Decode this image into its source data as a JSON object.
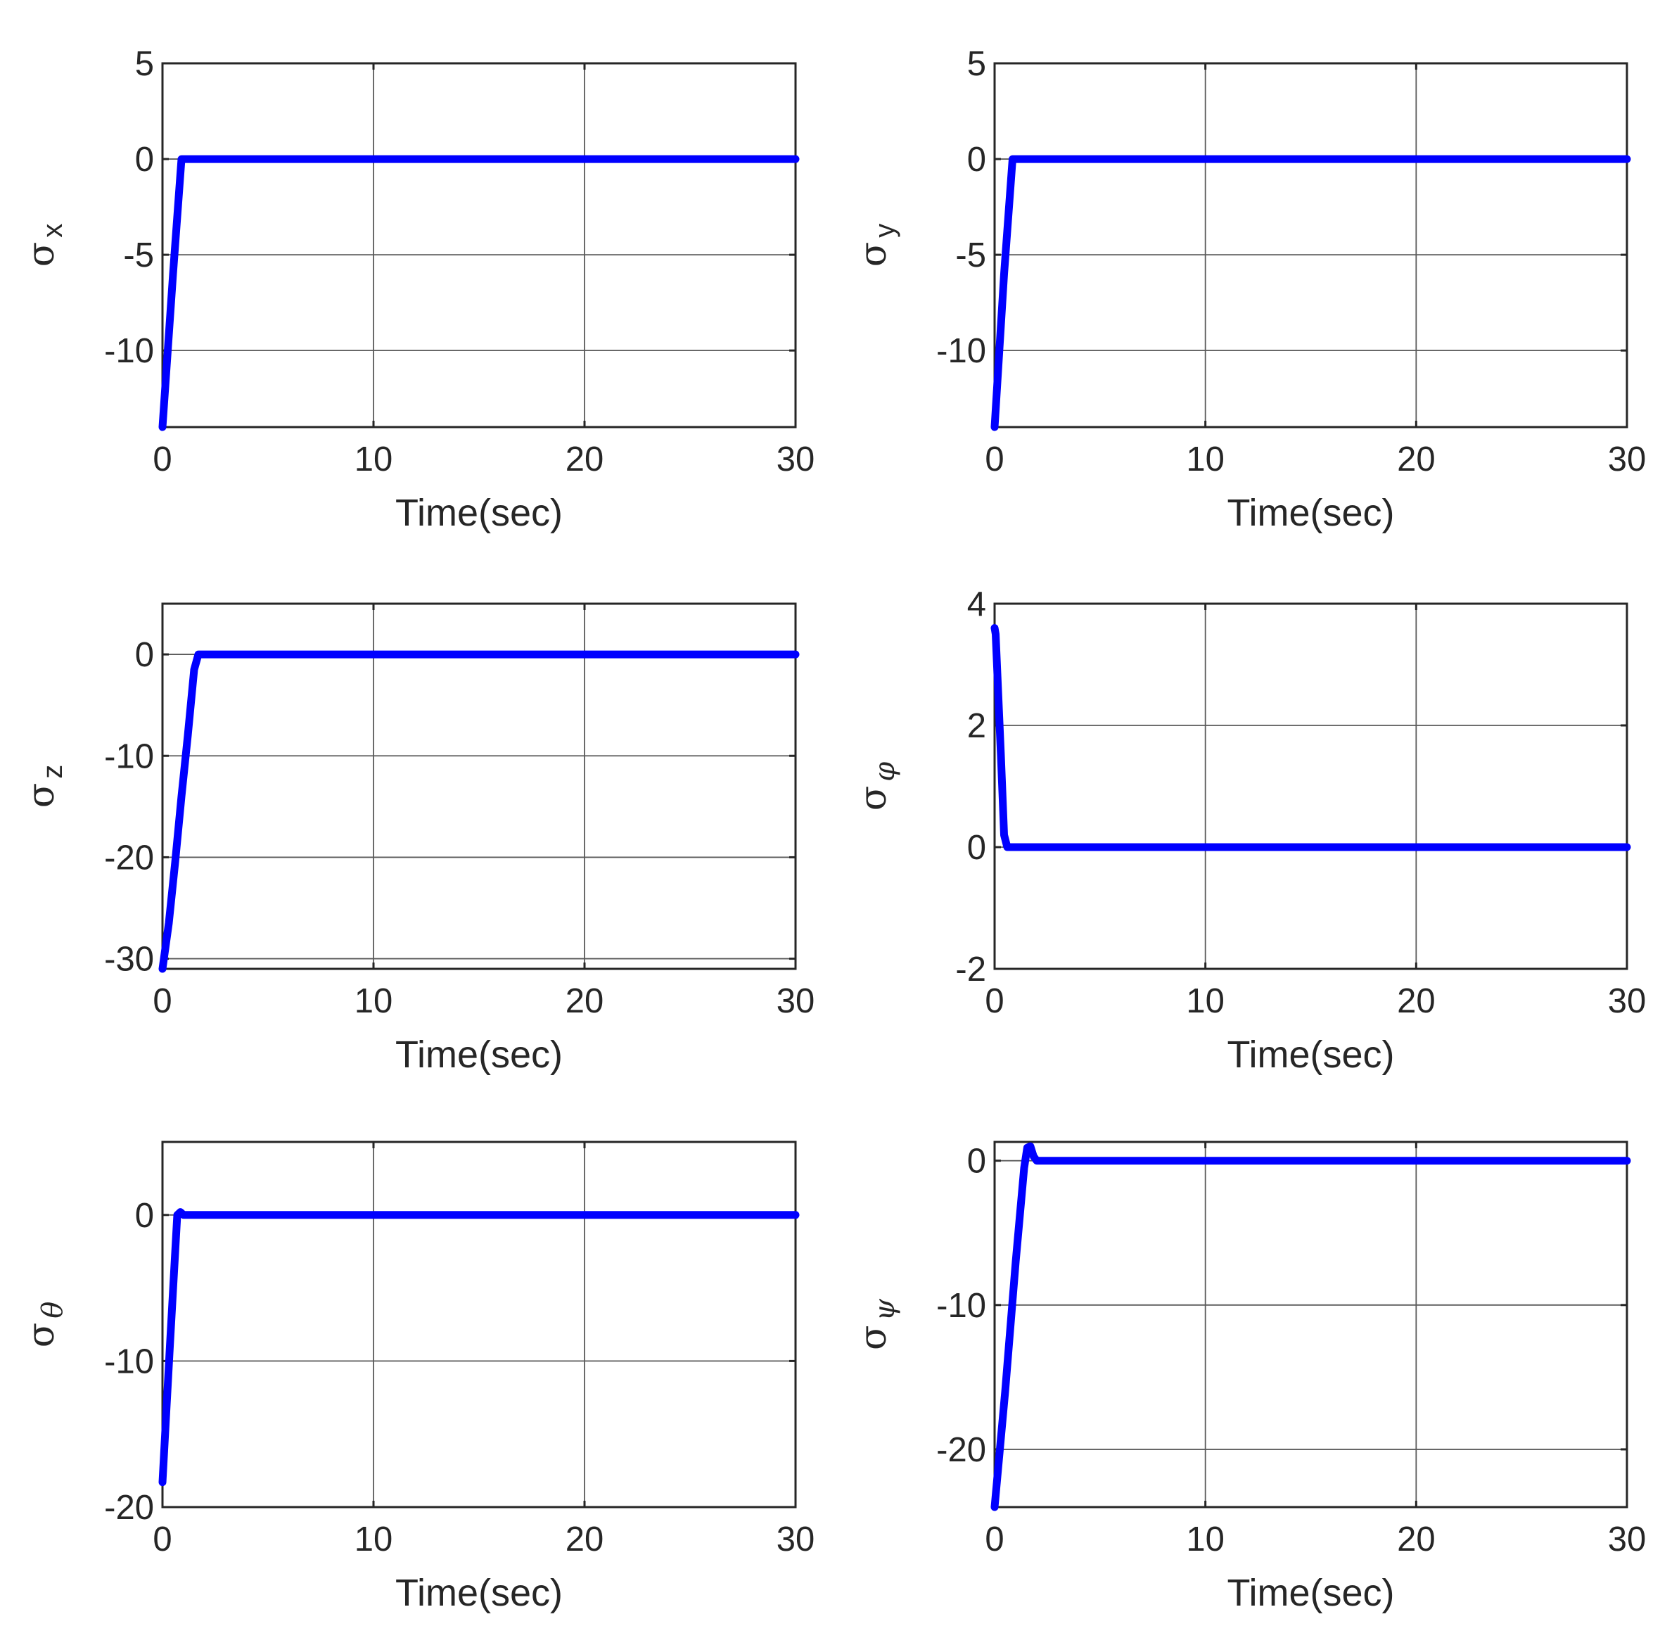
{
  "figure": {
    "panels_count": 6
  },
  "colors": {
    "series": "#0000ff",
    "axes": "#262626",
    "grid": "#5a5a5a"
  },
  "chart_data": [
    {
      "type": "line",
      "ylabel_symbol": "σ",
      "ylabel_sub": "x",
      "ylabel_sub_greek": false,
      "xlabel": "Time(sec)",
      "xlim": [
        0,
        30
      ],
      "ylim": [
        -14,
        5
      ],
      "xticks": [
        0,
        10,
        20,
        30
      ],
      "xtick_labels": [
        "0",
        "10",
        "20",
        "30"
      ],
      "yticks": [
        -10,
        -5,
        0,
        5
      ],
      "ytick_labels": [
        "-10",
        "-5",
        "0",
        "5"
      ],
      "grid": "on",
      "series": [
        {
          "x": [
            0,
            0.5,
            0.9,
            1.1,
            30
          ],
          "y": [
            -14,
            -6,
            0,
            0,
            0
          ]
        }
      ]
    },
    {
      "type": "line",
      "ylabel_symbol": "σ",
      "ylabel_sub": "y",
      "ylabel_sub_greek": false,
      "xlabel": "Time(sec)",
      "xlim": [
        0,
        30
      ],
      "ylim": [
        -14,
        5
      ],
      "xticks": [
        0,
        10,
        20,
        30
      ],
      "xtick_labels": [
        "0",
        "10",
        "20",
        "30"
      ],
      "yticks": [
        -10,
        -5,
        0,
        5
      ],
      "ytick_labels": [
        "-10",
        "-5",
        "0",
        "5"
      ],
      "grid": "on",
      "series": [
        {
          "x": [
            0,
            0.45,
            0.85,
            1.0,
            30
          ],
          "y": [
            -14,
            -6,
            0,
            0,
            0
          ]
        }
      ]
    },
    {
      "type": "line",
      "ylabel_symbol": "σ",
      "ylabel_sub": "z",
      "ylabel_sub_greek": false,
      "xlabel": "Time(sec)",
      "xlim": [
        0,
        30
      ],
      "ylim": [
        -31,
        5
      ],
      "xticks": [
        0,
        10,
        20,
        30
      ],
      "xtick_labels": [
        "0",
        "10",
        "20",
        "30"
      ],
      "yticks": [
        -30,
        -20,
        -10,
        0
      ],
      "ytick_labels": [
        "-30",
        "-20",
        "-10",
        "0"
      ],
      "grid": "on",
      "series": [
        {
          "x": [
            0,
            0.3,
            0.6,
            0.9,
            1.2,
            1.5,
            1.7,
            30
          ],
          "y": [
            -31,
            -26.5,
            -20.5,
            -14,
            -8,
            -1.5,
            0,
            0
          ]
        }
      ]
    },
    {
      "type": "line",
      "ylabel_symbol": "σ",
      "ylabel_sub": "φ",
      "ylabel_sub_greek": true,
      "xlabel": "Time(sec)",
      "xlim": [
        0,
        30
      ],
      "ylim": [
        -2,
        4
      ],
      "xticks": [
        0,
        10,
        20,
        30
      ],
      "xtick_labels": [
        "0",
        "10",
        "20",
        "30"
      ],
      "yticks": [
        -2,
        0,
        2,
        4
      ],
      "ytick_labels": [
        "-2",
        "0",
        "2",
        "4"
      ],
      "grid": "on",
      "series": [
        {
          "x": [
            0,
            0.05,
            0.3,
            0.45,
            0.6,
            30
          ],
          "y": [
            3.6,
            3.5,
            1.5,
            0.2,
            0,
            0
          ]
        }
      ]
    },
    {
      "type": "line",
      "ylabel_symbol": "σ",
      "ylabel_sub": "θ",
      "ylabel_sub_greek": true,
      "xlabel": "Time(sec)",
      "xlim": [
        0,
        30
      ],
      "ylim": [
        -20,
        5
      ],
      "xticks": [
        0,
        10,
        20,
        30
      ],
      "xtick_labels": [
        "0",
        "10",
        "20",
        "30"
      ],
      "yticks": [
        -20,
        -10,
        0
      ],
      "ytick_labels": [
        "-20",
        "-10",
        "0"
      ],
      "grid": "on",
      "series": [
        {
          "x": [
            0,
            0.35,
            0.7,
            0.85,
            1.0,
            30
          ],
          "y": [
            -18.3,
            -9,
            0,
            0.2,
            0,
            0
          ]
        }
      ]
    },
    {
      "type": "line",
      "ylabel_symbol": "σ",
      "ylabel_sub": "ψ",
      "ylabel_sub_greek": true,
      "xlabel": "Time(sec)",
      "xlim": [
        0,
        30
      ],
      "ylim": [
        -24,
        1.3
      ],
      "xticks": [
        0,
        10,
        20,
        30
      ],
      "xtick_labels": [
        "0",
        "10",
        "20",
        "30"
      ],
      "yticks": [
        -20,
        -10,
        0
      ],
      "ytick_labels": [
        "-20",
        "-10",
        "0"
      ],
      "grid": "on",
      "series": [
        {
          "x": [
            0,
            0.5,
            1.0,
            1.4,
            1.55,
            1.7,
            1.85,
            2.0,
            30
          ],
          "y": [
            -24,
            -16,
            -7,
            -0.5,
            0.9,
            1.0,
            0.3,
            0,
            0
          ]
        }
      ]
    }
  ]
}
